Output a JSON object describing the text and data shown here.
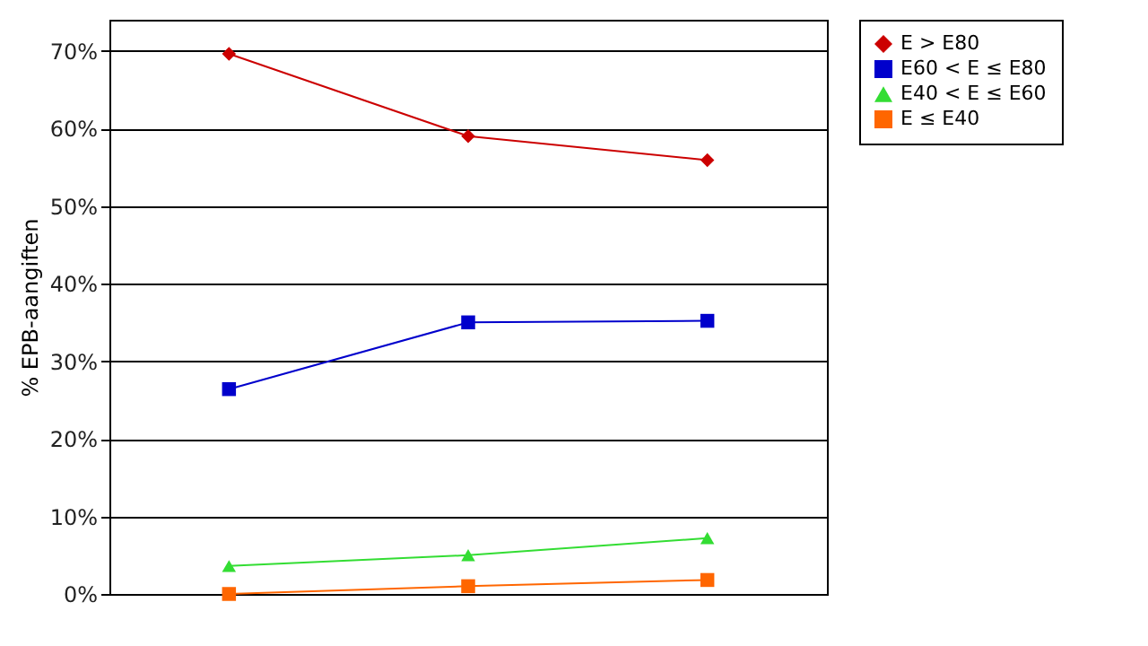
{
  "chart_data": {
    "type": "line",
    "ylabel": "% EPB-aangiften",
    "categories": [
      null,
      null,
      null
    ],
    "series": [
      {
        "name": "E > E80",
        "color": "#cc0000",
        "marker": "diamond",
        "values": [
          69.6,
          59.0,
          55.9
        ]
      },
      {
        "name": "E60 < E ≤ E80",
        "color": "#0000cc",
        "marker": "square",
        "values": [
          26.4,
          35.0,
          35.2
        ]
      },
      {
        "name": "E40 < E ≤ E60",
        "color": "#33dd33",
        "marker": "triangle",
        "values": [
          3.6,
          5.0,
          7.2
        ]
      },
      {
        "name": "E ≤ E40",
        "color": "#ff6600",
        "marker": "square",
        "values": [
          0,
          1,
          1.8
        ]
      }
    ],
    "ylim": [
      0,
      74
    ],
    "yticks": [
      {
        "value": 0,
        "label": "0%"
      },
      {
        "value": 10,
        "label": "10%"
      },
      {
        "value": 20,
        "label": "20%"
      },
      {
        "value": 30,
        "label": "30%"
      },
      {
        "value": 40,
        "label": "40%"
      },
      {
        "value": 50,
        "label": "50%"
      },
      {
        "value": 60,
        "label": "60%"
      },
      {
        "value": 70,
        "label": "70%"
      }
    ],
    "grid": "y",
    "legend": "right",
    "tick_labels": "y"
  }
}
